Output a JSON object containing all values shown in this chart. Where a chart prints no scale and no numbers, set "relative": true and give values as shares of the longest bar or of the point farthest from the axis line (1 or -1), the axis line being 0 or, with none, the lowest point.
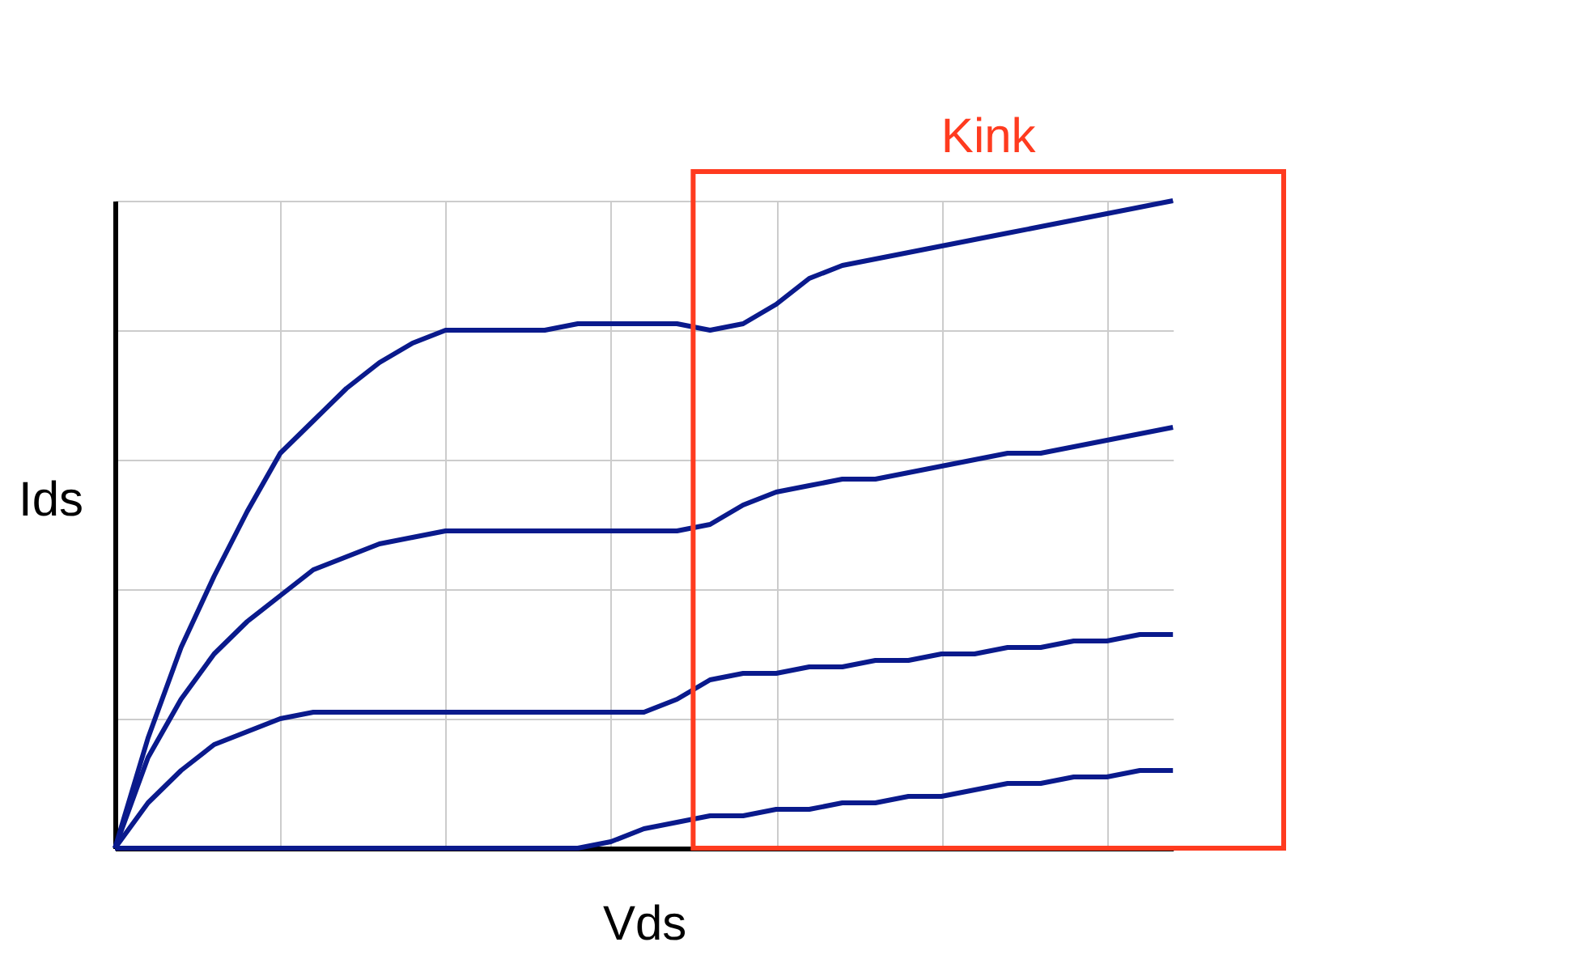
{
  "chart_data": {
    "type": "line",
    "relative": true,
    "xlabel": "Vds",
    "ylabel": "Ids",
    "grid": true,
    "marker": "none",
    "line_style": "solid",
    "categories": [
      null,
      null,
      null,
      null,
      null,
      null,
      null,
      null,
      null,
      null,
      null,
      null,
      null,
      null,
      null,
      null,
      null,
      null,
      null,
      null,
      null,
      null,
      null,
      null,
      null,
      null,
      null,
      null,
      null,
      null,
      null,
      null,
      null
    ],
    "series": [
      {
        "color": "#0a1a8c",
        "values": [
          0,
          0.17,
          0.31,
          0.42,
          0.52,
          0.61,
          0.66,
          0.71,
          0.75,
          0.78,
          0.8,
          0.8,
          0.8,
          0.8,
          0.81,
          0.81,
          0.81,
          0.81,
          0.8,
          0.81,
          0.84,
          0.88,
          0.9,
          0.91,
          0.92,
          0.93,
          0.94,
          0.95,
          0.96,
          0.97,
          0.98,
          0.99,
          1
        ]
      },
      {
        "color": "#0a1a8c",
        "values": [
          0,
          0.14,
          0.23,
          0.3,
          0.35,
          0.39,
          0.43,
          0.45,
          0.47,
          0.48,
          0.49,
          0.49,
          0.49,
          0.49,
          0.49,
          0.49,
          0.49,
          0.49,
          0.5,
          0.53,
          0.55,
          0.56,
          0.57,
          0.57,
          0.58,
          0.59,
          0.6,
          0.61,
          0.61,
          0.62,
          0.63,
          0.64,
          0.65
        ]
      },
      {
        "color": "#0a1a8c",
        "values": [
          0,
          0.07,
          0.12,
          0.16,
          0.18,
          0.2,
          0.21,
          0.21,
          0.21,
          0.21,
          0.21,
          0.21,
          0.21,
          0.21,
          0.21,
          0.21,
          0.21,
          0.23,
          0.26,
          0.27,
          0.27,
          0.28,
          0.28,
          0.29,
          0.29,
          0.3,
          0.3,
          0.31,
          0.31,
          0.32,
          0.32,
          0.33,
          0.33
        ]
      },
      {
        "color": "#0a1a8c",
        "values": [
          0,
          0,
          0,
          0,
          0,
          0,
          0,
          0,
          0,
          0,
          0,
          0,
          0,
          0,
          0,
          0.01,
          0.03,
          0.04,
          0.05,
          0.05,
          0.06,
          0.06,
          0.07,
          0.07,
          0.08,
          0.08,
          0.09,
          0.1,
          0.1,
          0.11,
          0.11,
          0.12,
          0.12
        ]
      }
    ],
    "annotations": [
      "Kink"
    ]
  }
}
